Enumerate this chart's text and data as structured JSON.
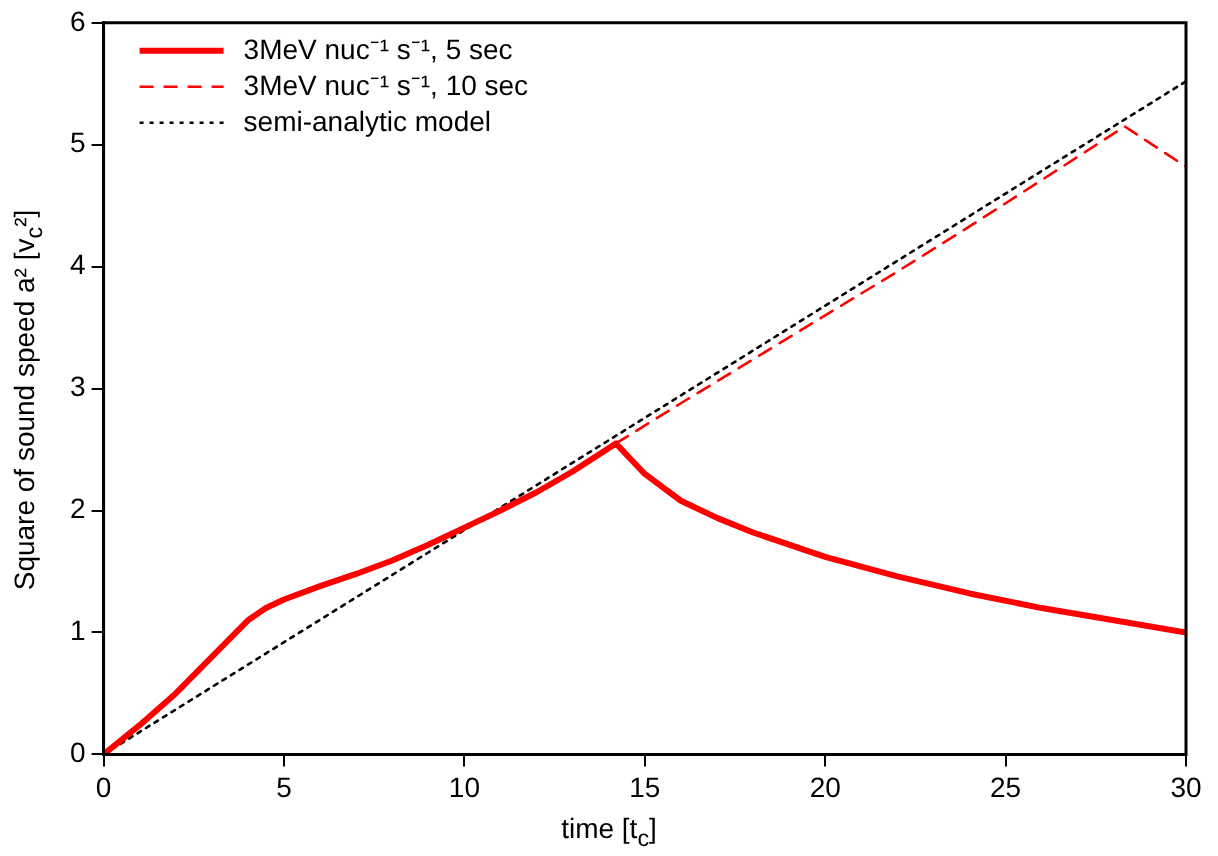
{
  "chart_data": {
    "type": "line",
    "xlabel": "time [t$_{c}$]",
    "ylabel": "Square of sound speed  a² [v$_{c}$²]",
    "xlim": [
      0,
      30
    ],
    "xticks": [
      0,
      5,
      10,
      15,
      20,
      25,
      30
    ],
    "ylim": [
      0,
      6
    ],
    "yticks": [
      0,
      1,
      2,
      3,
      4,
      5,
      6
    ],
    "grid": false,
    "legend": "top left",
    "marker": "none",
    "series": [
      {
        "name": "3MeV nuc⁻¹ s⁻¹, 5 sec",
        "color": "#ff0000",
        "line_style": "solid",
        "x": [
          0,
          1,
          2,
          3,
          4,
          4.5,
          5,
          6,
          7,
          8,
          9,
          10,
          11,
          12,
          13,
          14.2,
          15,
          16,
          17,
          18,
          20,
          22,
          24,
          26,
          28,
          30
        ],
        "values": [
          0,
          0.24,
          0.5,
          0.8,
          1.1,
          1.2,
          1.27,
          1.38,
          1.48,
          1.59,
          1.72,
          1.86,
          2.0,
          2.15,
          2.32,
          2.55,
          2.3,
          2.08,
          1.94,
          1.82,
          1.62,
          1.46,
          1.32,
          1.2,
          1.1,
          1.0
        ]
      },
      {
        "name": "3MeV nuc⁻¹ s⁻¹, 10 sec",
        "color": "#ff0000",
        "line_style": "dashed",
        "x": [
          14.2,
          16,
          18,
          20,
          22,
          24,
          26,
          28.3,
          30
        ],
        "values": [
          2.55,
          2.88,
          3.24,
          3.6,
          3.96,
          4.33,
          4.71,
          5.15,
          4.82
        ]
      },
      {
        "name": "semi-analytic model",
        "color": "#000000",
        "line_style": "dotted",
        "x": [
          0,
          30
        ],
        "values": [
          0,
          5.52
        ]
      }
    ]
  }
}
